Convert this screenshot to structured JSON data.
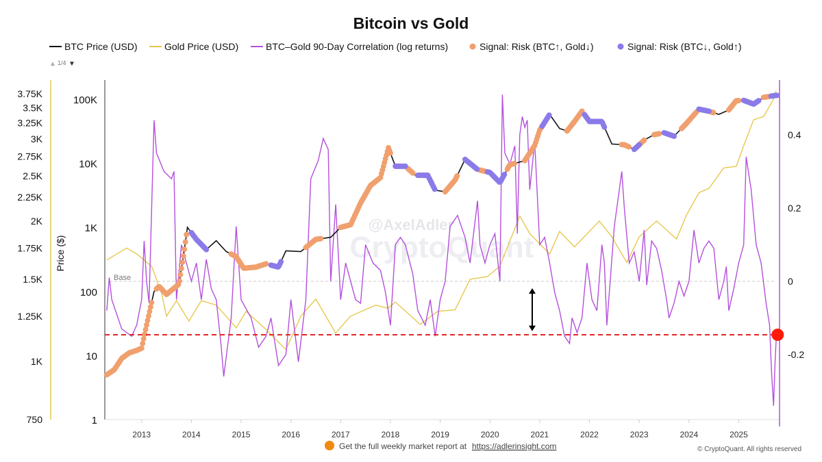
{
  "chart_data": {
    "type": "line",
    "title": "Bitcoin vs Gold",
    "legend": {
      "position": "top",
      "items": [
        {
          "label": "BTC Price (USD)",
          "color": "#111111",
          "kind": "line"
        },
        {
          "label": "Gold Price (USD)",
          "color": "#e6c84f",
          "kind": "line"
        },
        {
          "label": "BTC–Gold 90-Day Correlation (log returns)",
          "color": "#b44fdc",
          "kind": "line"
        },
        {
          "label": "Signal: Risk (BTC↑, Gold↓)",
          "color": "#f0a06e",
          "kind": "dot"
        },
        {
          "label": "Signal: Risk (BTC↓, Gold↑)",
          "color": "#8a7be8",
          "kind": "dot"
        }
      ],
      "pager": "1/4"
    },
    "x_axis": {
      "unit": "year",
      "range": [
        2012.26,
        2025.82
      ],
      "ticks": [
        "2013",
        "2014",
        "2015",
        "2016",
        "2017",
        "2018",
        "2019",
        "2020",
        "2021",
        "2022",
        "2023",
        "2024",
        "2025"
      ]
    },
    "btc_axis": {
      "label": "Price ($)",
      "scale": "log",
      "range": [
        1,
        200000
      ],
      "ticks": [
        {
          "v": 1,
          "t": "1"
        },
        {
          "v": 10,
          "t": "10"
        },
        {
          "v": 100,
          "t": "100"
        },
        {
          "v": 1000,
          "t": "1K"
        },
        {
          "v": 10000,
          "t": "10K"
        },
        {
          "v": 100000,
          "t": "100K"
        }
      ]
    },
    "gold_axis": {
      "scale": "log",
      "range": [
        750,
        3900
      ],
      "ticks": [
        {
          "v": 750,
          "t": "750"
        },
        {
          "v": 1000,
          "t": "1K"
        },
        {
          "v": 1250,
          "t": "1.25K"
        },
        {
          "v": 1500,
          "t": "1.5K"
        },
        {
          "v": 1750,
          "t": "1.75K"
        },
        {
          "v": 2000,
          "t": "2K"
        },
        {
          "v": 2250,
          "t": "2.25K"
        },
        {
          "v": 2500,
          "t": "2.5K"
        },
        {
          "v": 2750,
          "t": "2.75K"
        },
        {
          "v": 3000,
          "t": "3K"
        },
        {
          "v": 3250,
          "t": "3.25K"
        },
        {
          "v": 3500,
          "t": "3.5K"
        },
        {
          "v": 3750,
          "t": "3.75K"
        }
      ]
    },
    "corr_axis": {
      "range": [
        -0.378,
        0.55
      ],
      "ticks": [
        {
          "v": 0.4,
          "t": "0.4"
        },
        {
          "v": 0.2,
          "t": "0.2"
        },
        {
          "v": 0,
          "t": "0"
        },
        {
          "v": -0.2,
          "t": "-0.2"
        }
      ]
    },
    "btc": [
      [
        2012.3,
        5
      ],
      [
        2012.45,
        6
      ],
      [
        2012.6,
        9
      ],
      [
        2012.75,
        11
      ],
      [
        2012.9,
        12
      ],
      [
        2013.0,
        13
      ],
      [
        2013.1,
        30
      ],
      [
        2013.25,
        100
      ],
      [
        2013.35,
        120
      ],
      [
        2013.5,
        90
      ],
      [
        2013.75,
        130
      ],
      [
        2013.85,
        400
      ],
      [
        2013.92,
        1000
      ],
      [
        2014.1,
        650
      ],
      [
        2014.3,
        450
      ],
      [
        2014.5,
        620
      ],
      [
        2014.7,
        420
      ],
      [
        2014.9,
        350
      ],
      [
        2015.05,
        230
      ],
      [
        2015.3,
        240
      ],
      [
        2015.5,
        270
      ],
      [
        2015.75,
        240
      ],
      [
        2015.9,
        430
      ],
      [
        2016.2,
        420
      ],
      [
        2016.5,
        650
      ],
      [
        2016.8,
        700
      ],
      [
        2017.0,
        1000
      ],
      [
        2017.2,
        1100
      ],
      [
        2017.4,
        2400
      ],
      [
        2017.6,
        4500
      ],
      [
        2017.8,
        6000
      ],
      [
        2017.96,
        17500
      ],
      [
        2018.1,
        9000
      ],
      [
        2018.3,
        9000
      ],
      [
        2018.5,
        6500
      ],
      [
        2018.75,
        6500
      ],
      [
        2018.9,
        3800
      ],
      [
        2019.1,
        3600
      ],
      [
        2019.3,
        5500
      ],
      [
        2019.5,
        11500
      ],
      [
        2019.75,
        8000
      ],
      [
        2020.0,
        7200
      ],
      [
        2020.2,
        5000
      ],
      [
        2020.4,
        9500
      ],
      [
        2020.7,
        11000
      ],
      [
        2020.9,
        19000
      ],
      [
        2021.0,
        33000
      ],
      [
        2021.2,
        58000
      ],
      [
        2021.4,
        35000
      ],
      [
        2021.55,
        32000
      ],
      [
        2021.7,
        45000
      ],
      [
        2021.85,
        65000
      ],
      [
        2022.0,
        45000
      ],
      [
        2022.25,
        45000
      ],
      [
        2022.45,
        20000
      ],
      [
        2022.7,
        19500
      ],
      [
        2022.9,
        16500
      ],
      [
        2023.1,
        23000
      ],
      [
        2023.3,
        28000
      ],
      [
        2023.5,
        30000
      ],
      [
        2023.7,
        26500
      ],
      [
        2023.95,
        42000
      ],
      [
        2024.2,
        70000
      ],
      [
        2024.4,
        65000
      ],
      [
        2024.6,
        58000
      ],
      [
        2024.8,
        68000
      ],
      [
        2024.95,
        95000
      ],
      [
        2025.1,
        96000
      ],
      [
        2025.3,
        84000
      ],
      [
        2025.5,
        107000
      ],
      [
        2025.75,
        115000
      ]
    ],
    "gold": [
      [
        2012.3,
        1650
      ],
      [
        2012.7,
        1750
      ],
      [
        2012.9,
        1700
      ],
      [
        2013.2,
        1600
      ],
      [
        2013.4,
        1400
      ],
      [
        2013.5,
        1250
      ],
      [
        2013.7,
        1350
      ],
      [
        2013.95,
        1220
      ],
      [
        2014.2,
        1350
      ],
      [
        2014.5,
        1320
      ],
      [
        2014.9,
        1180
      ],
      [
        2015.1,
        1280
      ],
      [
        2015.5,
        1170
      ],
      [
        2015.9,
        1060
      ],
      [
        2016.2,
        1250
      ],
      [
        2016.5,
        1360
      ],
      [
        2016.9,
        1150
      ],
      [
        2017.2,
        1250
      ],
      [
        2017.7,
        1320
      ],
      [
        2017.95,
        1300
      ],
      [
        2018.1,
        1340
      ],
      [
        2018.6,
        1200
      ],
      [
        2018.95,
        1280
      ],
      [
        2019.3,
        1290
      ],
      [
        2019.6,
        1500
      ],
      [
        2019.95,
        1520
      ],
      [
        2020.2,
        1600
      ],
      [
        2020.6,
        2050
      ],
      [
        2020.8,
        1880
      ],
      [
        2021.2,
        1700
      ],
      [
        2021.4,
        1900
      ],
      [
        2021.7,
        1760
      ],
      [
        2022.2,
        2000
      ],
      [
        2022.45,
        1850
      ],
      [
        2022.75,
        1630
      ],
      [
        2023.0,
        1850
      ],
      [
        2023.35,
        2000
      ],
      [
        2023.75,
        1830
      ],
      [
        2023.95,
        2060
      ],
      [
        2024.2,
        2300
      ],
      [
        2024.4,
        2350
      ],
      [
        2024.7,
        2600
      ],
      [
        2024.95,
        2620
      ],
      [
        2025.1,
        2900
      ],
      [
        2025.3,
        3300
      ],
      [
        2025.5,
        3350
      ],
      [
        2025.7,
        3650
      ],
      [
        2025.75,
        3800
      ]
    ],
    "correlation": [
      [
        2012.3,
        -0.08
      ],
      [
        2012.35,
        0.01
      ],
      [
        2012.4,
        -0.05
      ],
      [
        2012.6,
        -0.13
      ],
      [
        2012.8,
        -0.15
      ],
      [
        2012.9,
        -0.12
      ],
      [
        2013.0,
        -0.05
      ],
      [
        2013.05,
        0.11
      ],
      [
        2013.1,
        0.0
      ],
      [
        2013.15,
        -0.06
      ],
      [
        2013.25,
        0.44
      ],
      [
        2013.3,
        0.35
      ],
      [
        2013.45,
        0.3
      ],
      [
        2013.6,
        0.28
      ],
      [
        2013.65,
        0.3
      ],
      [
        2013.7,
        -0.05
      ],
      [
        2013.8,
        0.1
      ],
      [
        2013.9,
        0.05
      ],
      [
        2014.0,
        0.0
      ],
      [
        2014.1,
        0.05
      ],
      [
        2014.2,
        -0.05
      ],
      [
        2014.3,
        0.06
      ],
      [
        2014.4,
        -0.02
      ],
      [
        2014.5,
        -0.05
      ],
      [
        2014.6,
        -0.18
      ],
      [
        2014.65,
        -0.26
      ],
      [
        2014.8,
        -0.1
      ],
      [
        2014.9,
        0.15
      ],
      [
        2015.0,
        -0.05
      ],
      [
        2015.2,
        -0.1
      ],
      [
        2015.35,
        -0.18
      ],
      [
        2015.5,
        -0.15
      ],
      [
        2015.6,
        -0.1
      ],
      [
        2015.75,
        -0.23
      ],
      [
        2015.9,
        -0.2
      ],
      [
        2016.0,
        -0.05
      ],
      [
        2016.15,
        -0.22
      ],
      [
        2016.3,
        -0.05
      ],
      [
        2016.4,
        0.28
      ],
      [
        2016.55,
        0.33
      ],
      [
        2016.65,
        0.39
      ],
      [
        2016.75,
        0.36
      ],
      [
        2016.8,
        0.0
      ],
      [
        2016.9,
        0.21
      ],
      [
        2017.0,
        -0.05
      ],
      [
        2017.1,
        0.05
      ],
      [
        2017.3,
        -0.05
      ],
      [
        2017.4,
        -0.06
      ],
      [
        2017.5,
        0.1
      ],
      [
        2017.65,
        0.05
      ],
      [
        2017.8,
        0.03
      ],
      [
        2017.9,
        -0.03
      ],
      [
        2018.0,
        -0.12
      ],
      [
        2018.1,
        0.1
      ],
      [
        2018.2,
        0.12
      ],
      [
        2018.3,
        0.1
      ],
      [
        2018.45,
        0.02
      ],
      [
        2018.55,
        -0.08
      ],
      [
        2018.7,
        -0.12
      ],
      [
        2018.8,
        -0.05
      ],
      [
        2018.9,
        -0.15
      ],
      [
        2019.0,
        -0.05
      ],
      [
        2019.1,
        0.0
      ],
      [
        2019.2,
        0.15
      ],
      [
        2019.35,
        0.18
      ],
      [
        2019.5,
        0.12
      ],
      [
        2019.6,
        0.05
      ],
      [
        2019.75,
        0.22
      ],
      [
        2019.8,
        0.1
      ],
      [
        2019.9,
        0.05
      ],
      [
        2020.0,
        0.1
      ],
      [
        2020.1,
        0.13
      ],
      [
        2020.2,
        0.0
      ],
      [
        2020.25,
        0.51
      ],
      [
        2020.3,
        0.35
      ],
      [
        2020.4,
        0.32
      ],
      [
        2020.5,
        0.37
      ],
      [
        2020.55,
        0.13
      ],
      [
        2020.6,
        0.4
      ],
      [
        2020.65,
        0.45
      ],
      [
        2020.7,
        0.42
      ],
      [
        2020.75,
        0.44
      ],
      [
        2020.8,
        0.25
      ],
      [
        2020.9,
        0.38
      ],
      [
        2021.0,
        0.1
      ],
      [
        2021.1,
        0.12
      ],
      [
        2021.2,
        0.05
      ],
      [
        2021.3,
        -0.03
      ],
      [
        2021.4,
        -0.08
      ],
      [
        2021.5,
        -0.15
      ],
      [
        2021.6,
        -0.17
      ],
      [
        2021.65,
        -0.1
      ],
      [
        2021.75,
        -0.14
      ],
      [
        2021.85,
        -0.1
      ],
      [
        2021.95,
        0.05
      ],
      [
        2022.05,
        -0.05
      ],
      [
        2022.15,
        -0.08
      ],
      [
        2022.25,
        0.1
      ],
      [
        2022.3,
        0.05
      ],
      [
        2022.35,
        -0.12
      ],
      [
        2022.5,
        0.15
      ],
      [
        2022.6,
        0.25
      ],
      [
        2022.65,
        0.3
      ],
      [
        2022.7,
        0.2
      ],
      [
        2022.8,
        0.05
      ],
      [
        2022.9,
        0.08
      ],
      [
        2023.0,
        0.0
      ],
      [
        2023.1,
        0.14
      ],
      [
        2023.15,
        -0.01
      ],
      [
        2023.25,
        0.11
      ],
      [
        2023.35,
        0.09
      ],
      [
        2023.45,
        0.03
      ],
      [
        2023.55,
        -0.05
      ],
      [
        2023.6,
        -0.1
      ],
      [
        2023.7,
        -0.06
      ],
      [
        2023.8,
        0.0
      ],
      [
        2023.9,
        -0.04
      ],
      [
        2024.0,
        0.0
      ],
      [
        2024.1,
        0.14
      ],
      [
        2024.2,
        0.05
      ],
      [
        2024.3,
        0.09
      ],
      [
        2024.4,
        0.11
      ],
      [
        2024.5,
        0.09
      ],
      [
        2024.6,
        -0.05
      ],
      [
        2024.7,
        0.0
      ],
      [
        2024.75,
        0.04
      ],
      [
        2024.8,
        -0.08
      ],
      [
        2024.9,
        -0.02
      ],
      [
        2025.0,
        0.05
      ],
      [
        2025.1,
        0.1
      ],
      [
        2025.15,
        0.34
      ],
      [
        2025.25,
        0.25
      ],
      [
        2025.35,
        0.1
      ],
      [
        2025.45,
        0.05
      ],
      [
        2025.55,
        -0.06
      ],
      [
        2025.62,
        -0.12
      ],
      [
        2025.66,
        -0.25
      ],
      [
        2025.7,
        -0.34
      ],
      [
        2025.73,
        -0.22
      ],
      [
        2025.76,
        -0.14
      ]
    ],
    "signal_risk_btc_up_ranges": [
      [
        2012.3,
        2013.2
      ],
      [
        2013.3,
        2013.9
      ],
      [
        2014.8,
        2015.5
      ],
      [
        2016.3,
        2016.6
      ],
      [
        2017.0,
        2018.0
      ],
      [
        2018.35,
        2018.45
      ],
      [
        2019.1,
        2019.35
      ],
      [
        2019.8,
        2019.9
      ],
      [
        2020.35,
        2020.5
      ],
      [
        2020.7,
        2021.05
      ],
      [
        2021.55,
        2021.85
      ],
      [
        2022.65,
        2022.8
      ],
      [
        2023.0,
        2023.1
      ],
      [
        2023.3,
        2023.4
      ],
      [
        2023.85,
        2024.15
      ],
      [
        2024.45,
        2024.5
      ],
      [
        2024.8,
        2025.0
      ],
      [
        2025.5,
        2025.6
      ]
    ],
    "signal_risk_btc_down_ranges": [
      [
        2014.0,
        2014.3
      ],
      [
        2015.6,
        2015.8
      ],
      [
        2018.1,
        2018.3
      ],
      [
        2018.55,
        2018.9
      ],
      [
        2019.5,
        2019.75
      ],
      [
        2019.95,
        2020.3
      ],
      [
        2021.05,
        2021.2
      ],
      [
        2021.9,
        2022.3
      ],
      [
        2022.9,
        2023.0
      ],
      [
        2023.5,
        2023.7
      ],
      [
        2024.2,
        2024.4
      ],
      [
        2025.1,
        2025.4
      ],
      [
        2025.65,
        2025.78
      ]
    ],
    "annotations": {
      "base_label": "Base",
      "base_correlation": 0,
      "threshold_correlation": -0.146,
      "current_marker": {
        "x": 2025.7,
        "correlation": -0.146
      },
      "arrow": {
        "x": 2020.85,
        "from": -0.019,
        "to": -0.136
      }
    },
    "grid": false
  },
  "watermark": {
    "line1": "@AxelAdler",
    "line2": "CryptoQuant"
  },
  "footer": {
    "promo_text": "Get the full weekly market report at",
    "promo_link": "https://adlerinsight.com",
    "copyright": "© CryptoQuant. All rights reserved"
  },
  "colors": {
    "btc": "#111111",
    "gold": "#e6c84f",
    "corr": "#b44fdc",
    "up": "#f0a06e",
    "down": "#8a7be8",
    "threshold": "#e02020"
  }
}
